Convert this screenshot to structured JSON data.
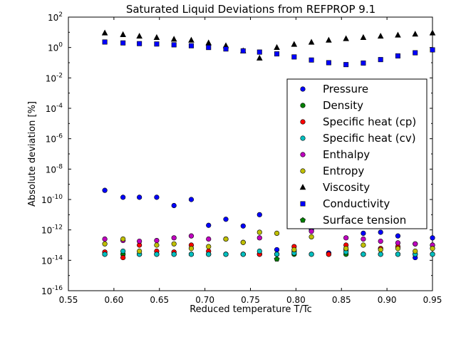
{
  "chart_data": {
    "type": "scatter",
    "title": "Saturated Liquid Deviations from REFPROP 9.1",
    "xlabel": "Reduced temperature T/Tc",
    "ylabel": "Absolute deviation [%]",
    "xlim": [
      0.55,
      0.95
    ],
    "ylim_log10": [
      -16,
      2
    ],
    "yscale": "log",
    "grid": false,
    "legend_position": "center-right",
    "x_ticks": [
      "0.55",
      "0.60",
      "0.65",
      "0.70",
      "0.75",
      "0.80",
      "0.85",
      "0.90",
      "0.95"
    ],
    "x_tick_values": [
      0.55,
      0.6,
      0.65,
      0.7,
      0.75,
      0.8,
      0.85,
      0.9,
      0.95
    ],
    "y_tick_exponents": [
      2,
      0,
      -2,
      -4,
      -6,
      -8,
      -10,
      -12,
      -14,
      -16
    ],
    "y_tick_labels": [
      "10^2",
      "10^0",
      "10^-2",
      "10^-4",
      "10^-6",
      "10^-8",
      "10^-10",
      "10^-12",
      "10^-14",
      "10^-16"
    ],
    "series": [
      {
        "name": "Pressure",
        "marker": "circle",
        "color": "#0000ff",
        "x": [
          0.59,
          0.61,
          0.628,
          0.647,
          0.666,
          0.685,
          0.704,
          0.723,
          0.742,
          0.76,
          0.779,
          0.798,
          0.817,
          0.836,
          0.855,
          0.874,
          0.893,
          0.912,
          0.931,
          0.95
        ],
        "y": [
          4e-10,
          1.4e-10,
          1.4e-10,
          1.4e-10,
          4e-11,
          1e-10,
          2e-12,
          5e-12,
          1.8e-12,
          1e-11,
          5e-14,
          4e-14,
          1e-12,
          3e-14,
          5e-14,
          6e-13,
          7e-13,
          4e-13,
          1.5e-14,
          3e-13
        ]
      },
      {
        "name": "Density",
        "marker": "circle",
        "color": "#008000",
        "x": [
          0.59,
          0.61,
          0.628,
          0.647,
          0.666,
          0.685,
          0.704,
          0.723,
          0.742,
          0.76,
          0.779,
          0.798,
          0.817,
          0.836,
          0.855,
          0.874,
          0.893,
          0.912,
          0.931,
          0.95
        ],
        "y": [
          2.5e-14,
          2.5e-14,
          2.5e-14,
          2.5e-14,
          2.5e-14,
          2.5e-14,
          2.5e-14,
          2.5e-14,
          2.5e-14,
          2.5e-14,
          2.5e-14,
          2.5e-14,
          2.5e-14,
          2.5e-14,
          2.5e-14,
          2.5e-14,
          2.5e-14,
          2.5e-14,
          2.5e-14,
          2.5e-14
        ]
      },
      {
        "name": "Specific heat (cp)",
        "marker": "circle",
        "color": "#ff0000",
        "x": [
          0.59,
          0.61,
          0.628,
          0.647,
          0.666,
          0.685,
          0.704,
          0.723,
          0.742,
          0.76,
          0.779,
          0.798,
          0.836,
          0.855,
          0.874,
          0.893,
          0.912,
          0.931,
          0.95
        ],
        "y": [
          3.5e-14,
          1.5e-14,
          1e-13,
          4e-14,
          3.5e-14,
          1e-13,
          4e-14,
          2.5e-14,
          2.5e-14,
          2.5e-14,
          2.5e-14,
          8e-14,
          2.5e-14,
          1e-13,
          2.5e-14,
          6e-14,
          8e-14,
          1.2e-13,
          1e-13
        ]
      },
      {
        "name": "Specific heat (cv)",
        "marker": "circle",
        "color": "#00bfbf",
        "x": [
          0.59,
          0.61,
          0.628,
          0.647,
          0.666,
          0.685,
          0.704,
          0.723,
          0.742,
          0.76,
          0.779,
          0.798,
          0.817,
          0.855,
          0.874,
          0.893,
          0.912,
          0.931,
          0.95
        ],
        "y": [
          2.5e-14,
          4e-14,
          2.5e-14,
          2.5e-14,
          2.5e-14,
          2.5e-14,
          2.5e-14,
          2.5e-14,
          2.5e-14,
          4e-14,
          2.5e-14,
          3e-14,
          2.5e-14,
          3.5e-14,
          2.5e-14,
          2.5e-14,
          2.5e-14,
          2.5e-14,
          2.5e-14
        ]
      },
      {
        "name": "Enthalpy",
        "marker": "circle",
        "color": "#bf00bf",
        "x": [
          0.59,
          0.61,
          0.628,
          0.647,
          0.666,
          0.685,
          0.704,
          0.723,
          0.742,
          0.76,
          0.817,
          0.855,
          0.874,
          0.893,
          0.912,
          0.931,
          0.95
        ],
        "y": [
          2.5e-13,
          2e-13,
          1.8e-13,
          2e-13,
          3e-13,
          4e-13,
          2.5e-13,
          2.5e-13,
          1.5e-13,
          3e-13,
          8e-13,
          3e-13,
          2.5e-13,
          1.8e-13,
          1.4e-13,
          1.2e-13,
          1e-13
        ]
      },
      {
        "name": "Entropy",
        "marker": "circle",
        "color": "#bfbf00",
        "x": [
          0.59,
          0.61,
          0.628,
          0.647,
          0.666,
          0.685,
          0.704,
          0.723,
          0.742,
          0.76,
          0.779,
          0.798,
          0.817,
          0.855,
          0.874,
          0.893,
          0.912,
          0.931,
          0.95
        ],
        "y": [
          1.2e-13,
          2.5e-13,
          4e-14,
          1e-13,
          1.2e-13,
          6e-14,
          8e-14,
          2.5e-13,
          1.5e-13,
          7e-13,
          6e-13,
          5e-14,
          3.5e-13,
          6e-14,
          1e-13,
          5e-14,
          6e-14,
          4e-14,
          6e-14
        ]
      },
      {
        "name": "Viscosity",
        "marker": "triangle",
        "color": "#000000",
        "x": [
          0.59,
          0.61,
          0.628,
          0.647,
          0.666,
          0.685,
          0.704,
          0.723,
          0.742,
          0.76,
          0.779,
          0.798,
          0.817,
          0.836,
          0.855,
          0.874,
          0.893,
          0.912,
          0.931,
          0.95
        ],
        "y": [
          9,
          7,
          5.5,
          4.5,
          3.5,
          3,
          2,
          1.3,
          0.6,
          0.2,
          1,
          1.6,
          2.2,
          3,
          3.8,
          4.5,
          5.5,
          6.5,
          7.5,
          9
        ]
      },
      {
        "name": "Conductivity",
        "marker": "square",
        "color": "#0000ff",
        "x": [
          0.59,
          0.61,
          0.628,
          0.647,
          0.666,
          0.685,
          0.704,
          0.723,
          0.742,
          0.76,
          0.779,
          0.798,
          0.817,
          0.836,
          0.855,
          0.874,
          0.893,
          0.912,
          0.931,
          0.95
        ],
        "y": [
          2.3,
          2,
          1.8,
          1.7,
          1.5,
          1.3,
          1,
          0.8,
          0.6,
          0.5,
          0.38,
          0.24,
          0.15,
          0.1,
          0.075,
          0.095,
          0.16,
          0.28,
          0.45,
          0.7
        ]
      },
      {
        "name": "Surface tension",
        "marker": "pentagon",
        "color": "#008000",
        "x": [
          0.779
        ],
        "y": [
          1.2e-14
        ]
      }
    ]
  }
}
